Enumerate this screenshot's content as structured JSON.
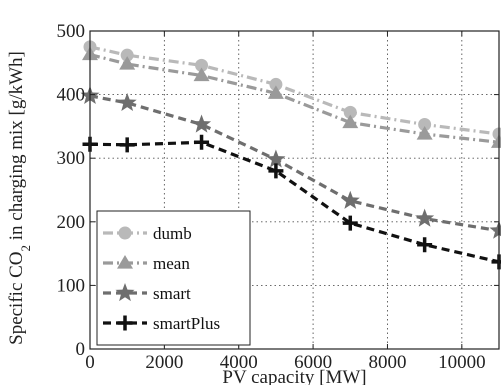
{
  "chart_data": {
    "type": "line",
    "xlabel": "PV capacity [MW]",
    "ylabel_parts": [
      "Specific CO",
      "2",
      " in charging mix [g/kWh]"
    ],
    "x": [
      0,
      1000,
      3000,
      5000,
      7000,
      9000,
      11000
    ],
    "xlim": [
      0,
      11000
    ],
    "ylim": [
      0,
      500
    ],
    "xticks": [
      0,
      2000,
      4000,
      6000,
      8000,
      10000
    ],
    "yticks": [
      0,
      100,
      200,
      300,
      400,
      500
    ],
    "grid": true,
    "legend_position": "bottom-left",
    "series": [
      {
        "name": "dumb",
        "values": [
          475,
          462,
          446,
          416,
          372,
          353,
          338
        ],
        "color": "#b9b9b9",
        "dash": "dashdot",
        "marker": "circle"
      },
      {
        "name": "mean",
        "values": [
          463,
          448,
          430,
          402,
          356,
          338,
          325
        ],
        "color": "#9a9a9a",
        "dash": "dashdot",
        "marker": "triangle"
      },
      {
        "name": "smart",
        "values": [
          398,
          387,
          353,
          298,
          233,
          205,
          186
        ],
        "color": "#6e6e6e",
        "dash": "dashed",
        "marker": "star"
      },
      {
        "name": "smartPlus",
        "values": [
          322,
          321,
          325,
          280,
          198,
          164,
          137
        ],
        "color": "#111111",
        "dash": "dashed",
        "marker": "plus"
      }
    ]
  }
}
